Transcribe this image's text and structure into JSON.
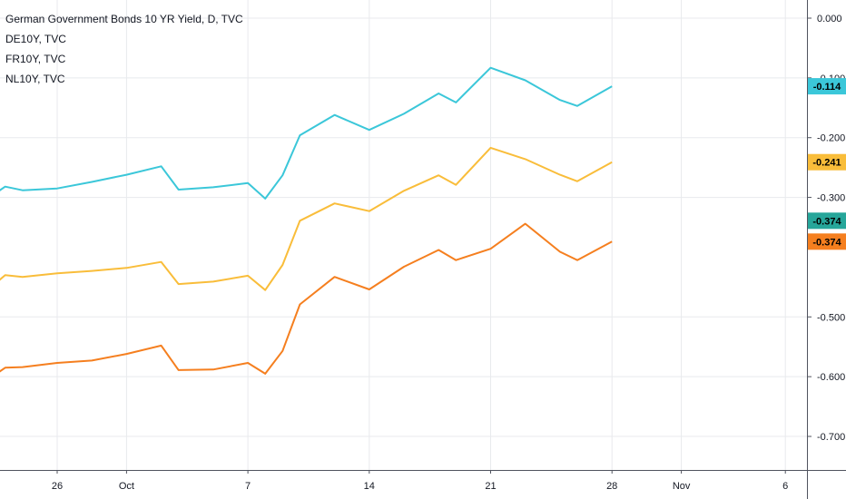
{
  "legend": {
    "title": "German Government Bonds 10 YR Yield, D, TVC",
    "items": [
      "DE10Y, TVC",
      "FR10Y, TVC",
      "NL10Y, TVC"
    ]
  },
  "colors": {
    "cyan": "#3bc7d9",
    "yellow": "#f9bd3a",
    "orange": "#f57f1f",
    "teal_badge": "#26a69a",
    "grid": "#e8eaed",
    "axis_text": "#131722"
  },
  "chart_data": {
    "type": "line",
    "y_ticks": [
      "0.000",
      "-0.100",
      "-0.200",
      "-0.300",
      "-0.500",
      "-0.600",
      "-0.700"
    ],
    "x_ticks": [
      "26",
      "Oct",
      "7",
      "14",
      "21",
      "28",
      "Nov",
      "6"
    ],
    "x_tick_days": [
      26,
      30,
      37,
      44,
      51,
      58,
      62,
      68
    ],
    "ylim": [
      -0.76,
      0.03
    ],
    "x_unit": "days from Sep 1",
    "x": [
      22,
      23,
      24,
      26,
      28,
      30,
      32,
      33,
      35,
      37,
      38,
      39,
      40,
      42,
      44,
      46,
      48,
      49,
      51,
      53,
      55,
      56,
      58
    ],
    "series": [
      {
        "color": "#3bc7d9",
        "badge": "-0.114",
        "values": [
          -0.302,
          -0.282,
          -0.288,
          -0.285,
          -0.274,
          -0.262,
          -0.248,
          -0.287,
          -0.283,
          -0.276,
          -0.302,
          -0.263,
          -0.196,
          -0.162,
          -0.187,
          -0.16,
          -0.126,
          -0.141,
          -0.083,
          -0.104,
          -0.137,
          -0.147,
          -0.114
        ]
      },
      {
        "color": "#f9bd3a",
        "badge": "-0.241",
        "values": [
          -0.455,
          -0.43,
          -0.433,
          -0.427,
          -0.423,
          -0.418,
          -0.408,
          -0.445,
          -0.441,
          -0.431,
          -0.455,
          -0.413,
          -0.339,
          -0.31,
          -0.323,
          -0.289,
          -0.263,
          -0.279,
          -0.217,
          -0.236,
          -0.262,
          -0.273,
          -0.241
        ]
      },
      {
        "color": "#f57f1f",
        "badge": "-0.374",
        "values": [
          -0.605,
          -0.585,
          -0.584,
          -0.577,
          -0.573,
          -0.562,
          -0.548,
          -0.589,
          -0.588,
          -0.577,
          -0.595,
          -0.557,
          -0.479,
          -0.433,
          -0.454,
          -0.416,
          -0.388,
          -0.405,
          -0.386,
          -0.344,
          -0.391,
          -0.405,
          -0.374
        ]
      }
    ],
    "extra_badge": {
      "value": "-0.374",
      "color": "#26a69a"
    }
  }
}
